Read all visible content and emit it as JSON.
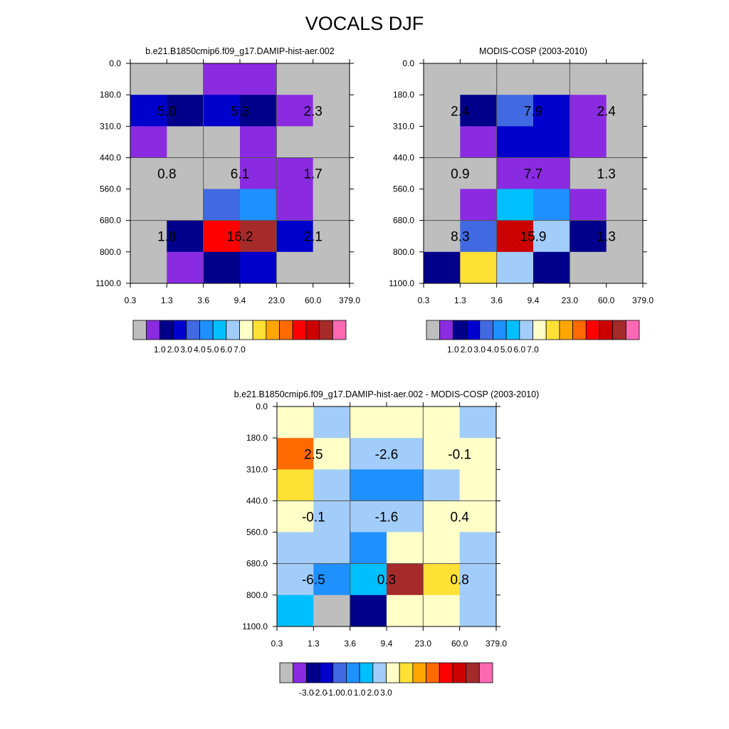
{
  "page": {
    "title": "VOCALS DJF"
  },
  "colors": {
    "palette": [
      "#bebebe",
      "#8a2be2",
      "#00008b",
      "#0000cd",
      "#4169e1",
      "#1e90ff",
      "#00bfff",
      "#a2cdfa",
      "#ffffc8",
      "#ffe135",
      "#ffa500",
      "#ff6a00",
      "#ff0000",
      "#cd0000",
      "#a52a2a",
      "#ff69b4"
    ],
    "grid_line": "#555555"
  },
  "chart_data": [
    {
      "type": "heatmap",
      "title": "b.e21.B1850cmip6.f09_g17.DAMIP-hist-aer.002",
      "x_tick_labels": [
        "0.3",
        "1.3",
        "3.6",
        "9.4",
        "23.0",
        "60.0",
        "379.0"
      ],
      "y_tick_labels": [
        "0.0",
        "180.0",
        "310.0",
        "440.0",
        "560.0",
        "680.0",
        "800.0",
        "1100.0"
      ],
      "cell_color_index": [
        [
          0,
          0,
          1,
          1,
          0,
          0
        ],
        [
          3,
          2,
          3,
          2,
          1,
          0
        ],
        [
          1,
          0,
          0,
          1,
          0,
          0
        ],
        [
          0,
          0,
          0,
          1,
          1,
          0
        ],
        [
          0,
          0,
          4,
          5,
          1,
          0
        ],
        [
          0,
          2,
          12,
          14,
          3,
          0
        ],
        [
          0,
          1,
          2,
          3,
          0,
          0
        ]
      ],
      "block_values": [
        [
          "5.0",
          "5.3",
          "2.3"
        ],
        [
          "0.8",
          "6.1",
          "1.7"
        ],
        [
          "1.8",
          "16.2",
          "2.1"
        ]
      ],
      "colorbar": {
        "labels": [
          "1.0",
          "2.0",
          "3.0",
          "4.0",
          "5.0",
          "6.0",
          "7.0"
        ]
      }
    },
    {
      "type": "heatmap",
      "title": "MODIS-COSP (2003-2010)",
      "x_tick_labels": [
        "0.3",
        "1.3",
        "3.6",
        "9.4",
        "23.0",
        "60.0",
        "379.0"
      ],
      "y_tick_labels": [
        "0.0",
        "180.0",
        "310.0",
        "440.0",
        "560.0",
        "680.0",
        "800.0",
        "1100.0"
      ],
      "cell_color_index": [
        [
          0,
          0,
          0,
          0,
          0,
          0
        ],
        [
          0,
          2,
          4,
          3,
          1,
          0
        ],
        [
          0,
          1,
          3,
          3,
          1,
          0
        ],
        [
          0,
          0,
          1,
          1,
          0,
          0
        ],
        [
          0,
          1,
          6,
          5,
          1,
          0
        ],
        [
          0,
          4,
          13,
          7,
          2,
          0
        ],
        [
          2,
          9,
          7,
          2,
          0,
          0
        ]
      ],
      "block_values": [
        [
          "2.4",
          "7.9",
          "2.4"
        ],
        [
          "0.9",
          "7.7",
          "1.3"
        ],
        [
          "8.3",
          "15.9",
          "1.3"
        ]
      ],
      "colorbar": {
        "labels": [
          "1.0",
          "2.0",
          "3.0",
          "4.0",
          "5.0",
          "6.0",
          "7.0"
        ]
      }
    },
    {
      "type": "heatmap",
      "title": "b.e21.B1850cmip6.f09_g17.DAMIP-hist-aer.002 - MODIS-COSP (2003-2010)",
      "x_tick_labels": [
        "0.3",
        "1.3",
        "3.6",
        "9.4",
        "23.0",
        "60.0",
        "379.0"
      ],
      "y_tick_labels": [
        "0.0",
        "180.0",
        "310.0",
        "440.0",
        "560.0",
        "680.0",
        "800.0",
        "1100.0"
      ],
      "cell_color_index": [
        [
          8,
          7,
          8,
          8,
          8,
          7
        ],
        [
          11,
          8,
          7,
          7,
          8,
          8
        ],
        [
          9,
          7,
          5,
          5,
          7,
          8
        ],
        [
          8,
          7,
          7,
          7,
          8,
          8
        ],
        [
          7,
          7,
          5,
          8,
          8,
          7
        ],
        [
          7,
          5,
          6,
          14,
          9,
          7
        ],
        [
          6,
          0,
          2,
          8,
          8,
          7
        ]
      ],
      "block_values": [
        [
          "2.5",
          "-2.6",
          "-0.1"
        ],
        [
          "-0.1",
          "-1.6",
          "0.4"
        ],
        [
          "-6.5",
          "0.3",
          "0.8"
        ]
      ],
      "colorbar": {
        "labels": [
          "-3.0",
          "-2.0",
          "-1.0",
          "0.0",
          "1.0",
          "2.0",
          "3.0"
        ]
      }
    }
  ]
}
